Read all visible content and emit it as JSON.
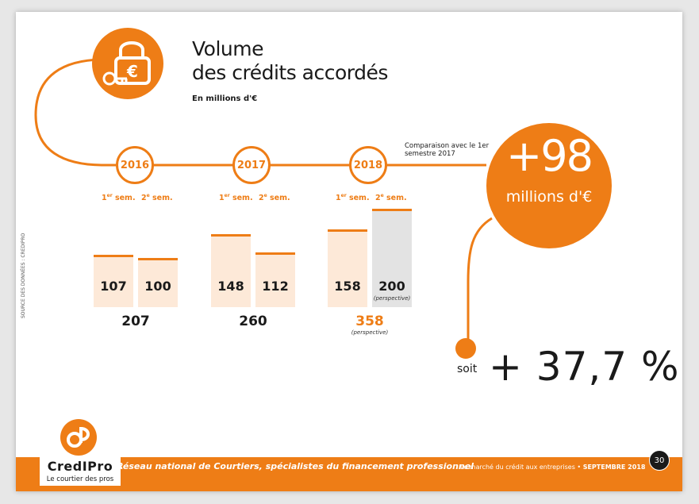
{
  "title_line1": "Volume",
  "title_line2": "des crédits accordés",
  "subtitle": "En millions d'€",
  "comparison_note": "Comparaison avec le 1er semestre 2017",
  "big_value": "+98",
  "big_unit": "millions d'€",
  "soit_label": "soit",
  "pct_change": "+ 37,7 %",
  "source": "SOURCE DES DONNÉES : CREDIPRO",
  "footer_tagline": "Réseau national de Courtiers, spécialistes du financement professionnel",
  "footer_doc": "Le marché du crédit aux entreprises •",
  "footer_date": "SEPTEMBRE 2018",
  "page_number": "30",
  "logo_name": "CredIPro",
  "logo_tagline": "Le courtier des pros",
  "colors": {
    "accent": "#ee7d16",
    "bar_fill": "#fde9d8",
    "perspective_fill": "#e3e3e3",
    "text": "#1a1a1a"
  },
  "icon": "lock-euro-key-icon",
  "chart_data": {
    "type": "bar",
    "title": "Volume des crédits accordés",
    "unit": "En millions d'€",
    "years": [
      {
        "year": "2016",
        "sem1_label": "1er sem.",
        "sem2_label": "2e sem.",
        "sem1": 107,
        "sem2": 100,
        "total": "207",
        "sem2_perspective": false,
        "total_note": ""
      },
      {
        "year": "2017",
        "sem1_label": "1er sem.",
        "sem2_label": "2e sem.",
        "sem1": 148,
        "sem2": 112,
        "total": "260",
        "sem2_perspective": false,
        "total_note": ""
      },
      {
        "year": "2018",
        "sem1_label": "1er sem.",
        "sem2_label": "2e sem.",
        "sem1": 158,
        "sem2": 200,
        "total": "358",
        "sem2_perspective": true,
        "sem2_note": "(perspective)",
        "total_note": "(perspective)"
      }
    ]
  }
}
